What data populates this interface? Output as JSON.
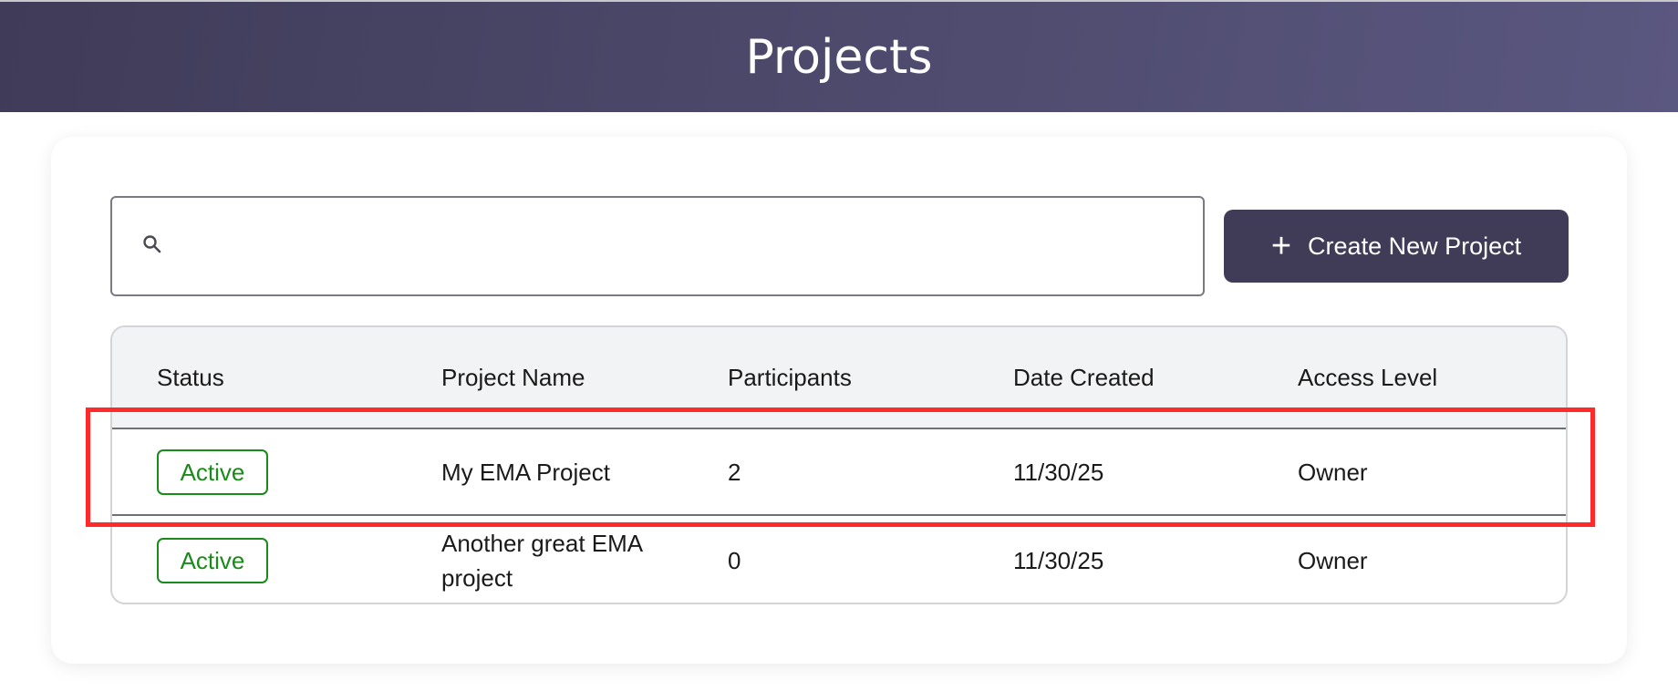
{
  "header": {
    "title": "Projects"
  },
  "search": {
    "placeholder": "",
    "value": ""
  },
  "toolbar": {
    "create_label": "Create New Project",
    "create_icon": "plus-icon"
  },
  "table": {
    "columns": [
      "Status",
      "Project Name",
      "Participants",
      "Date Created",
      "Access Level"
    ],
    "rows": [
      {
        "status": "Active",
        "name": "My EMA Project",
        "participants": "2",
        "date": "11/30/25",
        "access": "Owner"
      },
      {
        "status": "Active",
        "name": "Another great EMA project",
        "participants": "0",
        "date": "11/30/25",
        "access": "Owner"
      }
    ]
  },
  "colors": {
    "header": "#46425f",
    "button": "#403c58",
    "active": "#1a8a1a",
    "highlight": "#ff2a2a"
  }
}
